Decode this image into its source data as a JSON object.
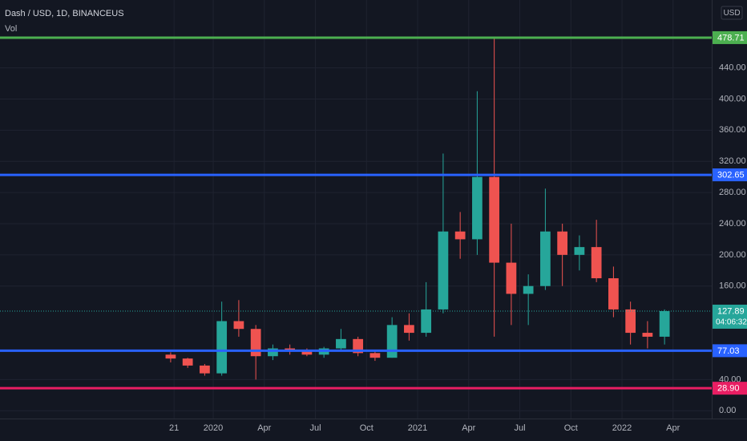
{
  "chart_data": {
    "type": "candlestick",
    "title": "Dash / USD, 1D, BINANCEUS",
    "subtitle": "Vol",
    "currency": "USD",
    "x": [
      0.5,
      1.5,
      2.5,
      3.5,
      4.5,
      5.5,
      6.5,
      7.5,
      8.5,
      9.5,
      10.5,
      11.5,
      12.5,
      13.5,
      14.5,
      15.5,
      16.5,
      17.5,
      18.5,
      19.5,
      20.5,
      21.5,
      22.5,
      23.5,
      24.5,
      25.5,
      26.5,
      27.5,
      28.5,
      29.5
    ],
    "open": [
      72,
      67,
      58,
      48,
      115,
      105,
      70,
      80,
      78,
      72,
      80,
      92,
      74,
      68,
      110,
      100,
      130,
      230,
      220,
      300,
      190,
      150,
      160,
      230,
      200,
      210,
      170,
      130,
      100,
      95
    ],
    "high": [
      75,
      68,
      60,
      140,
      142,
      110,
      85,
      85,
      80,
      82,
      105,
      95,
      76,
      120,
      125,
      165,
      330,
      255,
      410,
      478.71,
      240,
      175,
      285,
      240,
      225,
      245,
      185,
      140,
      115,
      130
    ],
    "low": [
      62,
      55,
      45,
      45,
      95,
      40,
      65,
      72,
      70,
      68,
      78,
      70,
      64,
      68,
      90,
      95,
      125,
      195,
      200,
      95,
      110,
      110,
      155,
      160,
      180,
      165,
      120,
      85,
      80,
      85
    ],
    "close": [
      67,
      58,
      48,
      115,
      105,
      70,
      80,
      78,
      72,
      80,
      92,
      74,
      68,
      110,
      100,
      130,
      230,
      220,
      300,
      190,
      150,
      160,
      230,
      200,
      210,
      170,
      130,
      100,
      95,
      127.89
    ],
    "up_color": "#26a69a",
    "down_color": "#ef5350",
    "xlim": [
      -9.52,
      32.27
    ],
    "xticks": [
      {
        "value": 0.7,
        "label": "21"
      },
      {
        "value": 3,
        "label": "2020"
      },
      {
        "value": 6,
        "label": "Apr"
      },
      {
        "value": 9,
        "label": "Jul"
      },
      {
        "value": 12,
        "label": "Oct"
      },
      {
        "value": 15,
        "label": "2021"
      },
      {
        "value": 18,
        "label": "Apr"
      },
      {
        "value": 21,
        "label": "Jul"
      },
      {
        "value": 24,
        "label": "Oct"
      },
      {
        "value": 27,
        "label": "2022"
      },
      {
        "value": 30,
        "label": "Apr"
      }
    ],
    "ylim": [
      -10,
      527
    ],
    "yticks": [
      {
        "value": 0,
        "label": "0.00"
      },
      {
        "value": 40,
        "label": "40.00"
      },
      {
        "value": 160,
        "label": "160.00"
      },
      {
        "value": 200,
        "label": "200.00"
      },
      {
        "value": 240,
        "label": "240.00"
      },
      {
        "value": 280,
        "label": "280.00"
      },
      {
        "value": 320,
        "label": "320.00"
      },
      {
        "value": 360,
        "label": "360.00"
      },
      {
        "value": 400,
        "label": "400.00"
      },
      {
        "value": 440,
        "label": "440.00"
      }
    ],
    "grid": true,
    "hlines": [
      {
        "value": 478.71,
        "color": "#4caf50"
      },
      {
        "value": 302.65,
        "color": "#2962ff"
      },
      {
        "value": 77.03,
        "color": "#2962ff"
      },
      {
        "value": 28.9,
        "label": "28.90",
        "color": "#e91e63"
      }
    ],
    "last_price": {
      "value": 127.89,
      "countdown": "04:06:32",
      "color": "#26a69a"
    }
  }
}
